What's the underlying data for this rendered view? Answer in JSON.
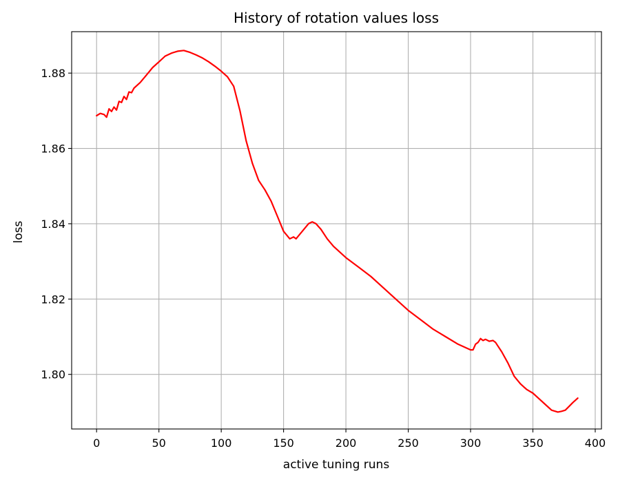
{
  "chart_data": {
    "type": "line",
    "title": "History of rotation values loss",
    "xlabel": "active tuning runs",
    "ylabel": "loss",
    "xlim": [
      -20,
      405
    ],
    "ylim": [
      1.7855,
      1.891
    ],
    "xticks": [
      0,
      50,
      100,
      150,
      200,
      250,
      300,
      350,
      400
    ],
    "yticks": [
      1.8,
      1.82,
      1.84,
      1.86,
      1.88
    ],
    "ytick_labels": [
      "1.80",
      "1.82",
      "1.84",
      "1.86",
      "1.88"
    ],
    "grid": true,
    "series": [
      {
        "color": "#ff0000",
        "x": [
          0,
          3,
          6,
          8,
          10,
          12,
          14,
          16,
          18,
          20,
          22,
          24,
          26,
          28,
          30,
          35,
          40,
          45,
          50,
          55,
          60,
          65,
          70,
          75,
          80,
          85,
          90,
          95,
          100,
          105,
          110,
          115,
          120,
          125,
          130,
          135,
          140,
          145,
          150,
          155,
          158,
          160,
          162,
          165,
          170,
          173,
          176,
          180,
          185,
          190,
          200,
          210,
          220,
          230,
          240,
          250,
          260,
          270,
          280,
          290,
          300,
          302,
          304,
          306,
          308,
          310,
          312,
          315,
          318,
          320,
          322,
          325,
          330,
          335,
          340,
          345,
          350,
          355,
          360,
          365,
          370,
          373,
          376,
          379,
          382,
          386
        ],
        "y": [
          1.8687,
          1.8693,
          1.869,
          1.8683,
          1.8705,
          1.8698,
          1.871,
          1.8702,
          1.8725,
          1.8722,
          1.8738,
          1.873,
          1.875,
          1.8748,
          1.876,
          1.8775,
          1.8795,
          1.8815,
          1.883,
          1.8845,
          1.8853,
          1.8858,
          1.886,
          1.8855,
          1.8848,
          1.884,
          1.883,
          1.8818,
          1.8805,
          1.879,
          1.8765,
          1.87,
          1.862,
          1.856,
          1.8515,
          1.849,
          1.846,
          1.842,
          1.838,
          1.836,
          1.8365,
          1.836,
          1.8368,
          1.838,
          1.84,
          1.8405,
          1.84,
          1.8385,
          1.836,
          1.834,
          1.831,
          1.8285,
          1.826,
          1.823,
          1.82,
          1.817,
          1.8145,
          1.812,
          1.81,
          1.808,
          1.8065,
          1.8065,
          1.808,
          1.8085,
          1.8095,
          1.809,
          1.8093,
          1.8088,
          1.809,
          1.8085,
          1.8075,
          1.806,
          1.803,
          1.7995,
          1.7975,
          1.796,
          1.795,
          1.7935,
          1.792,
          1.7905,
          1.79,
          1.7902,
          1.7905,
          1.7915,
          1.7925,
          1.7937
        ]
      }
    ]
  }
}
